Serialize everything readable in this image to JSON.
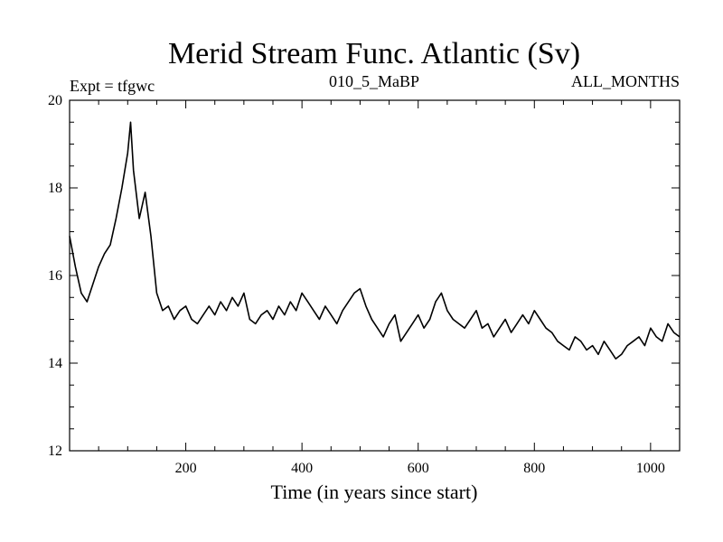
{
  "chart_data": {
    "type": "line",
    "title": "Merid Stream Func. Atlantic (Sv)",
    "subtitle_left": "Expt = tfgwc",
    "subtitle_center": "010_5_MaBP",
    "subtitle_right": "ALL_MONTHS",
    "xlabel": "Time (in years since start)",
    "ylabel": "",
    "xlim": [
      0,
      1050
    ],
    "ylim": [
      12,
      20
    ],
    "x_ticks_major": [
      200,
      400,
      600,
      800,
      1000
    ],
    "x_ticks_minor_step": 50,
    "y_ticks_major": [
      12,
      14,
      16,
      18,
      20
    ],
    "y_ticks_minor_step": 0.5,
    "grid": false,
    "line_color": "#000000",
    "series": [
      {
        "x": [
          0,
          10,
          20,
          30,
          40,
          50,
          60,
          70,
          80,
          90,
          100,
          105,
          110,
          120,
          130,
          140,
          150,
          160,
          170,
          180,
          190,
          200,
          210,
          220,
          230,
          240,
          250,
          260,
          270,
          280,
          290,
          300,
          310,
          320,
          330,
          340,
          350,
          360,
          370,
          380,
          390,
          400,
          410,
          420,
          430,
          440,
          450,
          460,
          470,
          480,
          490,
          500,
          510,
          520,
          530,
          540,
          550,
          560,
          570,
          580,
          590,
          600,
          610,
          620,
          630,
          640,
          650,
          660,
          670,
          680,
          690,
          700,
          710,
          720,
          730,
          740,
          750,
          760,
          770,
          780,
          790,
          800,
          810,
          820,
          830,
          840,
          850,
          860,
          870,
          880,
          890,
          900,
          910,
          920,
          930,
          940,
          950,
          960,
          970,
          980,
          990,
          1000,
          1010,
          1020,
          1030,
          1040,
          1050
        ],
        "values": [
          16.9,
          16.2,
          15.6,
          15.4,
          15.8,
          16.2,
          16.5,
          16.7,
          17.3,
          18.0,
          18.8,
          19.5,
          18.4,
          17.3,
          17.9,
          16.9,
          15.6,
          15.2,
          15.3,
          15.0,
          15.2,
          15.3,
          15.0,
          14.9,
          15.1,
          15.3,
          15.1,
          15.4,
          15.2,
          15.5,
          15.3,
          15.6,
          15.0,
          14.9,
          15.1,
          15.2,
          15.0,
          15.3,
          15.1,
          15.4,
          15.2,
          15.6,
          15.4,
          15.2,
          15.0,
          15.3,
          15.1,
          14.9,
          15.2,
          15.4,
          15.6,
          15.7,
          15.3,
          15.0,
          14.8,
          14.6,
          14.9,
          15.1,
          14.5,
          14.7,
          14.9,
          15.1,
          14.8,
          15.0,
          15.4,
          15.6,
          15.2,
          15.0,
          14.9,
          14.8,
          15.0,
          15.2,
          14.8,
          14.9,
          14.6,
          14.8,
          15.0,
          14.7,
          14.9,
          15.1,
          14.9,
          15.2,
          15.0,
          14.8,
          14.7,
          14.5,
          14.4,
          14.3,
          14.6,
          14.5,
          14.3,
          14.4,
          14.2,
          14.5,
          14.3,
          14.1,
          14.2,
          14.4,
          14.5,
          14.6,
          14.4,
          14.8,
          14.6,
          14.5,
          14.9,
          14.7,
          14.6
        ]
      }
    ]
  }
}
